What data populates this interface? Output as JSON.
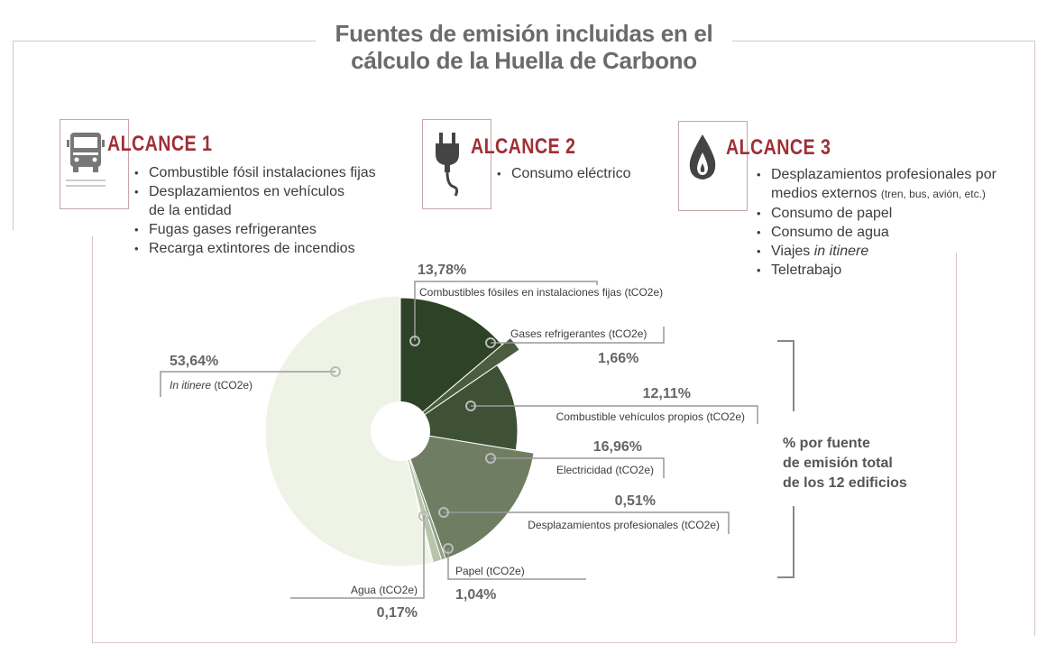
{
  "title": {
    "line1": "Fuentes de emisión incluidas en el",
    "line2": "cálculo de la Huella de Carbono"
  },
  "scopes": [
    {
      "heading": "ALCANCE 1",
      "icon": "truck-icon",
      "items": [
        "Combustible fósil instalaciones fijas",
        "Desplazamientos en vehículos",
        "de la entidad",
        "Fugas gases refrigerantes",
        "Recarga extintores de incendios"
      ]
    },
    {
      "heading": "ALCANCE 2",
      "icon": "plug-icon",
      "items": [
        "Consumo eléctrico"
      ]
    },
    {
      "heading": "ALCANCE 3",
      "icon": "drop-flame-icon",
      "items": [
        "Desplazamientos profesionales por",
        "medios externos",
        "(tren, bus, avión, etc.)",
        "Consumo de papel",
        "Consumo de agua",
        "Viajes ",
        "in itinere",
        "Teletrabajo"
      ]
    }
  ],
  "side_note": {
    "line1": "% por fuente",
    "line2": "de emisión total",
    "line3": "de los 12 edificios"
  },
  "colors": {
    "accent": "#a02f36",
    "frame": "#d9c6c6",
    "slices": [
      "#2d4226",
      "#4b5c3f",
      "#3e5134",
      "#6f7d62",
      "#93a287",
      "#b7c5ab",
      "#dbe4cf",
      "#eef3e6"
    ]
  },
  "chart_data": {
    "type": "pie",
    "title": "Fuentes de emisión incluidas en el cálculo de la Huella de Carbono",
    "unit": "%",
    "slices": [
      {
        "label": "Combustibles fósiles en instalaciones fijas (tCO2e)",
        "pct_label": "13,78%",
        "value": 13.78
      },
      {
        "label": "Gases refrigerantes (tCO2e)",
        "pct_label": "1,66%",
        "value": 1.66
      },
      {
        "label": "Combustible vehículos propios (tCO2e)",
        "pct_label": "12,11%",
        "value": 12.11
      },
      {
        "label": "Electricidad (tCO2e)",
        "pct_label": "16,96%",
        "value": 16.96
      },
      {
        "label": "Desplazamientos profesionales (tCO2e)",
        "pct_label": "0,51%",
        "value": 0.51
      },
      {
        "label": "Papel (tCO2e)",
        "pct_label": "1,04%",
        "value": 1.04
      },
      {
        "label": "Agua (tCO2e)",
        "pct_label": "0,17%",
        "value": 0.17
      },
      {
        "label": "In itinere (tCO2e)",
        "pct_label": "53,64%",
        "value": 53.64
      }
    ]
  }
}
